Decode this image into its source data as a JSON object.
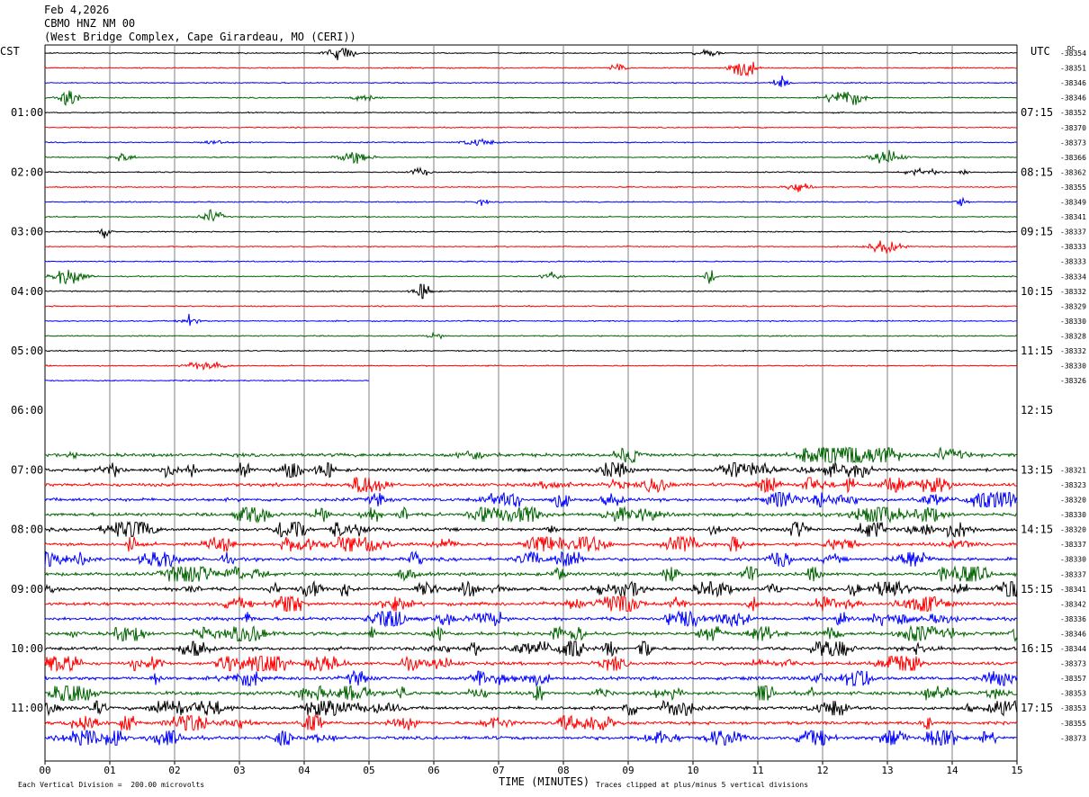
{
  "header": {
    "date": "Feb 4,2026",
    "station": "CBMO HNZ NM 00",
    "location": "(West Bridge Complex, Cape Girardeau, MO (CERI))"
  },
  "left_tz": "CST",
  "right_tz": "UTC",
  "dc_label": "DC",
  "colors": {
    "black": "#000000",
    "red": "#ff0000",
    "blue": "#0000ff",
    "green": "#006400",
    "grid": "#808080"
  },
  "chart_data": {
    "type": "line",
    "title": "",
    "xlabel": "TIME (MINUTES)",
    "x_ticks": [
      "00",
      "01",
      "02",
      "03",
      "04",
      "05",
      "06",
      "07",
      "08",
      "09",
      "10",
      "11",
      "12",
      "13",
      "14",
      "15"
    ],
    "xlim": [
      0,
      15
    ],
    "left_hour_labels": [
      "01:00",
      "02:00",
      "03:00",
      "04:00",
      "05:00",
      "06:00",
      "07:00",
      "08:00",
      "09:00",
      "10:00",
      "11:00"
    ],
    "right_hour_labels": [
      "07:15",
      "08:15",
      "09:15",
      "10:15",
      "11:15",
      "12:15",
      "13:15",
      "14:15",
      "15:15",
      "16:15",
      "17:15"
    ],
    "trace_color_cycle": [
      "black",
      "red",
      "blue",
      "green"
    ],
    "trace_count": 48,
    "dc_offsets": [
      "-38354",
      "-38351",
      "-38346",
      "-38346",
      "-38352",
      "-38370",
      "-38373",
      "-38366",
      "-38362",
      "-38355",
      "-38349",
      "-38341",
      "-38337",
      "-38333",
      "-38333",
      "-38334",
      "-38332",
      "-38329",
      "-38330",
      "-38328",
      "-38332",
      "-38330",
      "-38326",
      "",
      "",
      "",
      "",
      "",
      "-38321",
      "-38323",
      "-38320",
      "-38330",
      "-38320",
      "-38337",
      "-38330",
      "-38337",
      "-38341",
      "-38342",
      "-38336",
      "-38346",
      "-38344",
      "-38373",
      "-38357",
      "-38353",
      "-38353",
      "-38355",
      "-38373",
      ""
    ],
    "footer_division": "Each Vertical Division =  200.00 microvolts",
    "footer_clip": "Traces clipped at plus/minus 5 vertical divisions"
  }
}
